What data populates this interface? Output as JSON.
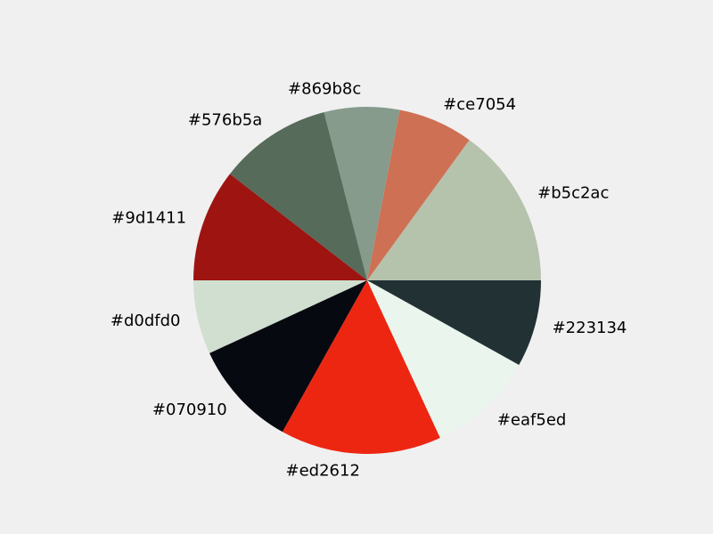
{
  "chart_data": {
    "type": "pie",
    "background": "#f0f0f0",
    "start_angle_deg": 0,
    "direction": "counterclockwise",
    "slices": [
      {
        "label": "#b5c2ac",
        "color": "#b5c2ac",
        "value": 15.0
      },
      {
        "label": "#ce7054",
        "color": "#ce7054",
        "value": 7.0
      },
      {
        "label": "#869b8c",
        "color": "#869b8c",
        "value": 7.0
      },
      {
        "label": "#576b5a",
        "color": "#576b5a",
        "value": 10.5
      },
      {
        "label": "#9d1411",
        "color": "#9d1411",
        "value": 10.5
      },
      {
        "label": "#d0dfd0",
        "color": "#d0dfd0",
        "value": 6.9
      },
      {
        "label": "#070910",
        "color": "#070910",
        "value": 10.0
      },
      {
        "label": "#ed2612",
        "color": "#ed2612",
        "value": 15.0
      },
      {
        "label": "#eaf5ed",
        "color": "#eaf5ed",
        "value": 10.0
      },
      {
        "label": "#223134",
        "color": "#223134",
        "value": 8.1
      }
    ]
  }
}
